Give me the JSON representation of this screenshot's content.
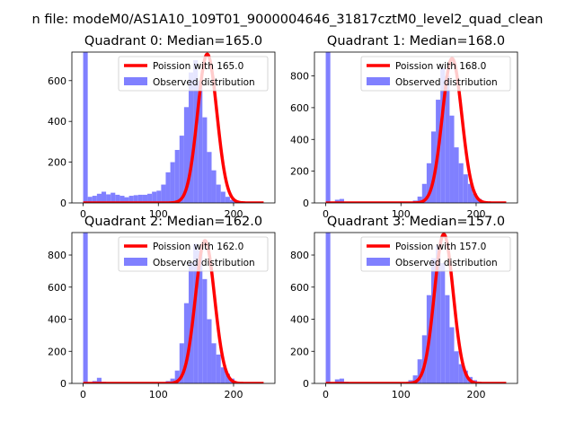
{
  "figure_title": "n file: modeM0/AS1A10_109T01_9000004646_31817cztM0_level2_quad_clean",
  "chart_data": [
    {
      "type": "bar",
      "title": "Quadrant 0: Median=165.0",
      "median": 165.0,
      "xlim": [
        -15,
        255
      ],
      "ylim": [
        0,
        740
      ],
      "xticks": [
        0,
        100,
        200
      ],
      "yticks": [
        0,
        200,
        400,
        600
      ],
      "bin_start": 0,
      "bin_width": 6.1,
      "values": [
        740,
        30,
        35,
        45,
        55,
        42,
        50,
        40,
        35,
        28,
        35,
        38,
        40,
        40,
        45,
        55,
        60,
        90,
        150,
        200,
        260,
        330,
        470,
        640,
        700,
        600,
        420,
        250,
        160,
        90,
        55,
        30,
        15,
        10,
        8,
        5
      ],
      "series": [
        {
          "name": "Poission with 165.0",
          "color": "#ff0000",
          "kind": "line",
          "mean": 165.0,
          "peak": 730
        },
        {
          "name": "Observed distribution",
          "color": "#8080ff",
          "kind": "bar"
        }
      ],
      "legend_loc": "top-right"
    },
    {
      "type": "bar",
      "title": "Quadrant 1: Median=168.0",
      "median": 168.0,
      "xlim": [
        -15,
        255
      ],
      "ylim": [
        0,
        950
      ],
      "xticks": [
        0,
        100,
        200
      ],
      "yticks": [
        0,
        200,
        400,
        600,
        800
      ],
      "bin_start": 0,
      "bin_width": 6.1,
      "values": [
        950,
        5,
        20,
        25,
        5,
        3,
        2,
        0,
        0,
        0,
        0,
        0,
        0,
        0,
        0,
        0,
        0,
        0,
        5,
        15,
        40,
        120,
        250,
        450,
        650,
        850,
        800,
        550,
        350,
        250,
        180,
        120,
        60,
        25,
        10,
        5
      ],
      "series": [
        {
          "name": "Poission with 168.0",
          "color": "#ff0000",
          "kind": "line",
          "mean": 168.0,
          "peak": 910
        },
        {
          "name": "Observed distribution",
          "color": "#8080ff",
          "kind": "bar"
        }
      ],
      "legend_loc": "top-right"
    },
    {
      "type": "bar",
      "title": "Quadrant 2: Median=162.0",
      "median": 162.0,
      "xlim": [
        -15,
        255
      ],
      "ylim": [
        0,
        940
      ],
      "xticks": [
        0,
        100,
        200
      ],
      "yticks": [
        0,
        200,
        400,
        600,
        800
      ],
      "bin_start": 0,
      "bin_width": 6.1,
      "values": [
        940,
        5,
        15,
        35,
        10,
        3,
        2,
        0,
        0,
        0,
        0,
        0,
        0,
        0,
        0,
        0,
        0,
        5,
        15,
        30,
        80,
        250,
        500,
        750,
        870,
        830,
        650,
        400,
        250,
        180,
        100,
        60,
        30,
        10,
        5,
        2
      ],
      "series": [
        {
          "name": "Poission with 162.0",
          "color": "#ff0000",
          "kind": "line",
          "mean": 162.0,
          "peak": 890
        },
        {
          "name": "Observed distribution",
          "color": "#8080ff",
          "kind": "bar"
        }
      ],
      "legend_loc": "top-right"
    },
    {
      "type": "bar",
      "title": "Quadrant 3: Median=157.0",
      "median": 157.0,
      "xlim": [
        -15,
        255
      ],
      "ylim": [
        0,
        940
      ],
      "xticks": [
        0,
        100,
        200
      ],
      "yticks": [
        0,
        200,
        400,
        600,
        800
      ],
      "bin_start": 0,
      "bin_width": 6.1,
      "values": [
        940,
        5,
        25,
        30,
        10,
        3,
        2,
        0,
        0,
        0,
        0,
        0,
        0,
        0,
        0,
        0,
        0,
        5,
        20,
        50,
        150,
        300,
        550,
        780,
        860,
        750,
        550,
        350,
        200,
        120,
        80,
        40,
        20,
        10,
        5,
        2
      ],
      "series": [
        {
          "name": "Poission with 157.0",
          "color": "#ff0000",
          "kind": "line",
          "mean": 157.0,
          "peak": 930
        },
        {
          "name": "Observed distribution",
          "color": "#8080ff",
          "kind": "bar"
        }
      ],
      "legend_loc": "top-right"
    }
  ]
}
